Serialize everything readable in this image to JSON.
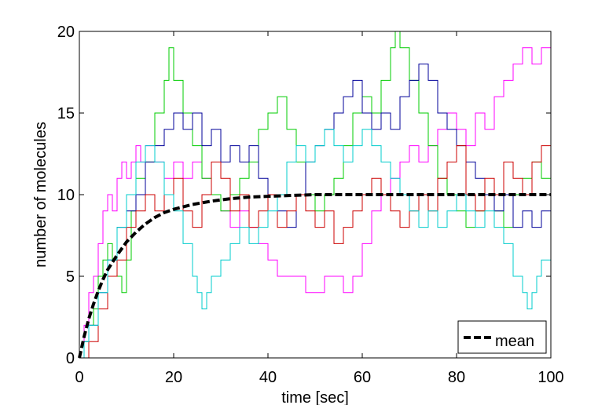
{
  "chart_data": {
    "type": "line",
    "title": "",
    "xlabel": "time [sec]",
    "ylabel": "number of molecules",
    "xlim": [
      0,
      100
    ],
    "ylim": [
      0,
      20
    ],
    "xticks": [
      "0",
      "20",
      "40",
      "60",
      "80",
      "100"
    ],
    "yticks": [
      "0",
      "5",
      "10",
      "15",
      "20"
    ],
    "grid": false,
    "legend": {
      "placement": "bottom-right",
      "entries": [
        "mean"
      ]
    },
    "series": [
      {
        "color": "#ff00ff",
        "style": "step",
        "points": [
          [
            0,
            0
          ],
          [
            1,
            2
          ],
          [
            2,
            4
          ],
          [
            3,
            5
          ],
          [
            4,
            7
          ],
          [
            5,
            9
          ],
          [
            6,
            10
          ],
          [
            7,
            9
          ],
          [
            8,
            11
          ],
          [
            9,
            12
          ],
          [
            10,
            11
          ],
          [
            11,
            12
          ],
          [
            12,
            13
          ],
          [
            13,
            12
          ],
          [
            14,
            13
          ],
          [
            16,
            12
          ],
          [
            18,
            11
          ],
          [
            20,
            12
          ],
          [
            22,
            11
          ],
          [
            24,
            12
          ],
          [
            26,
            11
          ],
          [
            28,
            10
          ],
          [
            30,
            9
          ],
          [
            32,
            8
          ],
          [
            34,
            9
          ],
          [
            36,
            8
          ],
          [
            38,
            7
          ],
          [
            40,
            6
          ],
          [
            42,
            5
          ],
          [
            45,
            5
          ],
          [
            48,
            4
          ],
          [
            52,
            5
          ],
          [
            56,
            4
          ],
          [
            58,
            5
          ],
          [
            60,
            7
          ],
          [
            62,
            9
          ],
          [
            64,
            10
          ],
          [
            66,
            11
          ],
          [
            68,
            12
          ],
          [
            70,
            13
          ],
          [
            72,
            12
          ],
          [
            74,
            13
          ],
          [
            76,
            14
          ],
          [
            78,
            15
          ],
          [
            80,
            14
          ],
          [
            82,
            13
          ],
          [
            84,
            15
          ],
          [
            86,
            14
          ],
          [
            88,
            16
          ],
          [
            90,
            17
          ],
          [
            92,
            18
          ],
          [
            94,
            19
          ],
          [
            96,
            18
          ],
          [
            98,
            19
          ],
          [
            100,
            18
          ]
        ]
      },
      {
        "color": "#00cc00",
        "style": "step",
        "points": [
          [
            0,
            0
          ],
          [
            1,
            1
          ],
          [
            2,
            2
          ],
          [
            3,
            3
          ],
          [
            4,
            5
          ],
          [
            5,
            6
          ],
          [
            6,
            7
          ],
          [
            7,
            6
          ],
          [
            8,
            5
          ],
          [
            9,
            4
          ],
          [
            10,
            6
          ],
          [
            11,
            9
          ],
          [
            12,
            11
          ],
          [
            14,
            12
          ],
          [
            16,
            15
          ],
          [
            18,
            17
          ],
          [
            19,
            19
          ],
          [
            20,
            17
          ],
          [
            22,
            15
          ],
          [
            24,
            13
          ],
          [
            26,
            11
          ],
          [
            28,
            10
          ],
          [
            30,
            9
          ],
          [
            32,
            10
          ],
          [
            34,
            11
          ],
          [
            36,
            12
          ],
          [
            38,
            14
          ],
          [
            40,
            15
          ],
          [
            42,
            16
          ],
          [
            44,
            14
          ],
          [
            46,
            12
          ],
          [
            48,
            10
          ],
          [
            50,
            9
          ],
          [
            52,
            10
          ],
          [
            54,
            11
          ],
          [
            56,
            13
          ],
          [
            58,
            15
          ],
          [
            60,
            16
          ],
          [
            62,
            15
          ],
          [
            64,
            17
          ],
          [
            66,
            19
          ],
          [
            67,
            20
          ],
          [
            68,
            19
          ],
          [
            70,
            17
          ],
          [
            72,
            15
          ],
          [
            74,
            13
          ],
          [
            76,
            11
          ],
          [
            78,
            10
          ],
          [
            80,
            9
          ],
          [
            82,
            8
          ],
          [
            84,
            9
          ],
          [
            86,
            10
          ],
          [
            88,
            9
          ],
          [
            90,
            8
          ],
          [
            92,
            10
          ],
          [
            94,
            11
          ],
          [
            96,
            12
          ],
          [
            98,
            11
          ],
          [
            100,
            10
          ]
        ]
      },
      {
        "color": "#000099",
        "style": "step",
        "points": [
          [
            0,
            0
          ],
          [
            1,
            1
          ],
          [
            2,
            2
          ],
          [
            4,
            4
          ],
          [
            6,
            6
          ],
          [
            8,
            8
          ],
          [
            10,
            9
          ],
          [
            12,
            10
          ],
          [
            14,
            12
          ],
          [
            16,
            13
          ],
          [
            18,
            14
          ],
          [
            20,
            15
          ],
          [
            22,
            14
          ],
          [
            24,
            15
          ],
          [
            26,
            13
          ],
          [
            28,
            14
          ],
          [
            30,
            12
          ],
          [
            32,
            13
          ],
          [
            34,
            12
          ],
          [
            36,
            13
          ],
          [
            38,
            11
          ],
          [
            40,
            10
          ],
          [
            42,
            9
          ],
          [
            44,
            8
          ],
          [
            46,
            10
          ],
          [
            48,
            12
          ],
          [
            50,
            13
          ],
          [
            52,
            14
          ],
          [
            54,
            15
          ],
          [
            56,
            16
          ],
          [
            58,
            17
          ],
          [
            60,
            15
          ],
          [
            62,
            14
          ],
          [
            64,
            15
          ],
          [
            66,
            14
          ],
          [
            68,
            16
          ],
          [
            70,
            17
          ],
          [
            72,
            18
          ],
          [
            74,
            17
          ],
          [
            76,
            15
          ],
          [
            78,
            14
          ],
          [
            80,
            13
          ],
          [
            82,
            12
          ],
          [
            84,
            11
          ],
          [
            86,
            10
          ],
          [
            88,
            9
          ],
          [
            90,
            10
          ],
          [
            92,
            8
          ],
          [
            94,
            9
          ],
          [
            96,
            8
          ],
          [
            98,
            9
          ],
          [
            100,
            9
          ]
        ]
      },
      {
        "color": "#cc0000",
        "style": "step",
        "points": [
          [
            0,
            0
          ],
          [
            2,
            1
          ],
          [
            4,
            3
          ],
          [
            6,
            5
          ],
          [
            8,
            6
          ],
          [
            10,
            8
          ],
          [
            12,
            9
          ],
          [
            14,
            10
          ],
          [
            16,
            9
          ],
          [
            18,
            10
          ],
          [
            20,
            11
          ],
          [
            22,
            9
          ],
          [
            24,
            8
          ],
          [
            26,
            10
          ],
          [
            28,
            12
          ],
          [
            30,
            11
          ],
          [
            32,
            9
          ],
          [
            34,
            10
          ],
          [
            36,
            8
          ],
          [
            38,
            9
          ],
          [
            40,
            10
          ],
          [
            42,
            8
          ],
          [
            44,
            9
          ],
          [
            46,
            10
          ],
          [
            48,
            9
          ],
          [
            50,
            8
          ],
          [
            52,
            9
          ],
          [
            54,
            7
          ],
          [
            56,
            8
          ],
          [
            58,
            9
          ],
          [
            60,
            10
          ],
          [
            62,
            11
          ],
          [
            64,
            10
          ],
          [
            66,
            9
          ],
          [
            68,
            8
          ],
          [
            70,
            9
          ],
          [
            72,
            10
          ],
          [
            74,
            9
          ],
          [
            76,
            11
          ],
          [
            78,
            12
          ],
          [
            80,
            13
          ],
          [
            82,
            10
          ],
          [
            84,
            9
          ],
          [
            86,
            11
          ],
          [
            88,
            10
          ],
          [
            90,
            12
          ],
          [
            92,
            11
          ],
          [
            94,
            10
          ],
          [
            96,
            12
          ],
          [
            98,
            13
          ],
          [
            100,
            11
          ]
        ]
      },
      {
        "color": "#00cccc",
        "style": "step",
        "points": [
          [
            0,
            0
          ],
          [
            1,
            1
          ],
          [
            2,
            2
          ],
          [
            4,
            4
          ],
          [
            6,
            6
          ],
          [
            8,
            8
          ],
          [
            10,
            10
          ],
          [
            12,
            12
          ],
          [
            14,
            13
          ],
          [
            16,
            12
          ],
          [
            18,
            10
          ],
          [
            20,
            9
          ],
          [
            22,
            7
          ],
          [
            24,
            5
          ],
          [
            25,
            4
          ],
          [
            26,
            3
          ],
          [
            27,
            4
          ],
          [
            28,
            5
          ],
          [
            30,
            6
          ],
          [
            32,
            7
          ],
          [
            34,
            8
          ],
          [
            36,
            7
          ],
          [
            38,
            8
          ],
          [
            40,
            9
          ],
          [
            42,
            10
          ],
          [
            44,
            12
          ],
          [
            46,
            13
          ],
          [
            48,
            12
          ],
          [
            50,
            13
          ],
          [
            52,
            14
          ],
          [
            54,
            13
          ],
          [
            56,
            12
          ],
          [
            58,
            13
          ],
          [
            60,
            14
          ],
          [
            62,
            13
          ],
          [
            64,
            12
          ],
          [
            66,
            11
          ],
          [
            68,
            10
          ],
          [
            70,
            9
          ],
          [
            72,
            8
          ],
          [
            74,
            9
          ],
          [
            76,
            8
          ],
          [
            78,
            9
          ],
          [
            80,
            10
          ],
          [
            82,
            9
          ],
          [
            84,
            8
          ],
          [
            86,
            9
          ],
          [
            88,
            8
          ],
          [
            90,
            7
          ],
          [
            92,
            5
          ],
          [
            94,
            4
          ],
          [
            95,
            3
          ],
          [
            96,
            4
          ],
          [
            97,
            5
          ],
          [
            98,
            6
          ],
          [
            100,
            5
          ]
        ]
      },
      {
        "name": "mean",
        "color": "#000000",
        "style": "dashed",
        "points": [
          [
            0,
            0
          ],
          [
            1,
            1.3
          ],
          [
            2,
            2.4
          ],
          [
            3,
            3.3
          ],
          [
            4,
            4.1
          ],
          [
            5,
            4.8
          ],
          [
            6,
            5.4
          ],
          [
            8,
            6.3
          ],
          [
            10,
            7.1
          ],
          [
            12,
            7.7
          ],
          [
            14,
            8.2
          ],
          [
            16,
            8.6
          ],
          [
            18,
            8.9
          ],
          [
            20,
            9.1
          ],
          [
            24,
            9.4
          ],
          [
            28,
            9.6
          ],
          [
            32,
            9.75
          ],
          [
            36,
            9.85
          ],
          [
            40,
            9.9
          ],
          [
            45,
            9.95
          ],
          [
            50,
            10
          ],
          [
            60,
            10
          ],
          [
            70,
            10
          ],
          [
            80,
            10
          ],
          [
            90,
            10
          ],
          [
            100,
            10
          ]
        ]
      }
    ]
  }
}
